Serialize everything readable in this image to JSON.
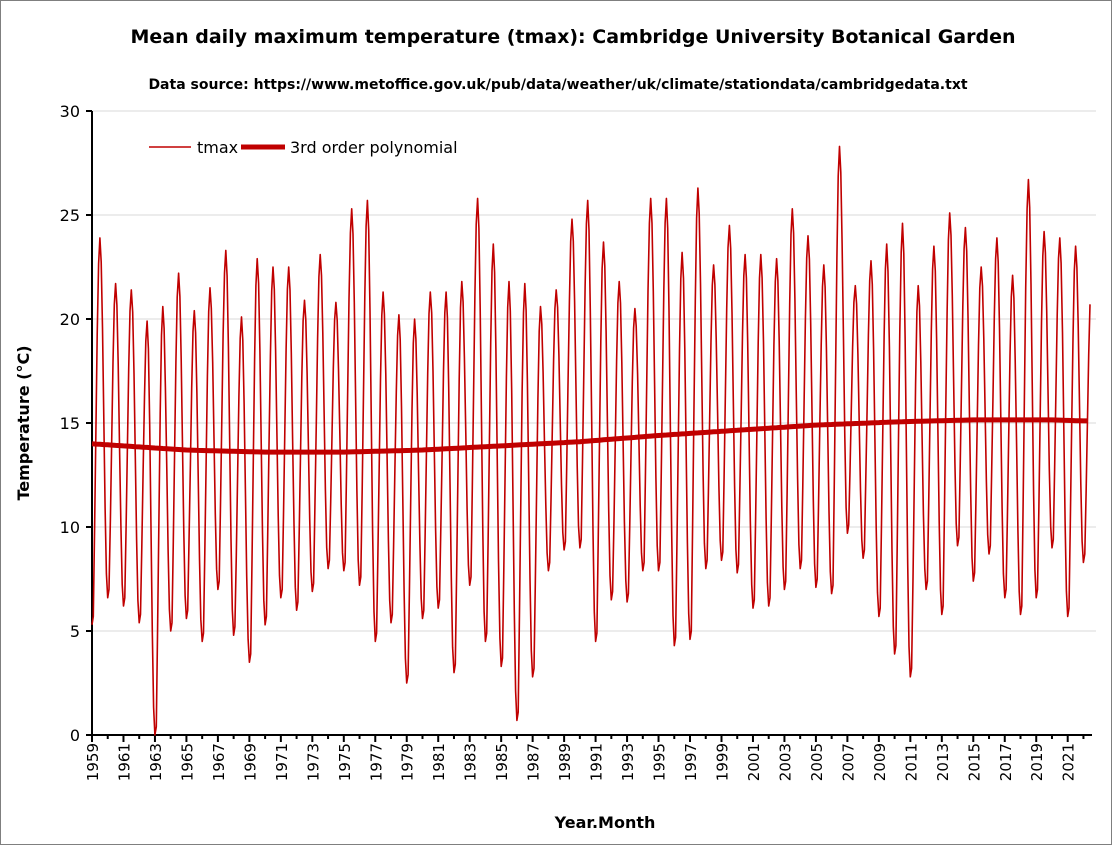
{
  "chart_data": {
    "type": "line",
    "title": "Mean daily maximum temperature (tmax): Cambridge University Botanical Garden",
    "subtitle": "Data source: https://www.metoffice.gov.uk/pub/data/weather/uk/climate/stationdata/cambridgedata.txt",
    "xlabel": "Year.Month",
    "ylabel": "Temperature (°C)",
    "ylim": [
      0,
      30
    ],
    "yticks": [
      "0",
      "5",
      "10",
      "15",
      "20",
      "25",
      "30"
    ],
    "xticks": [
      "1959",
      "1961",
      "1963",
      "1965",
      "1967",
      "1969",
      "1971",
      "1973",
      "1975",
      "1977",
      "1979",
      "1981",
      "1983",
      "1985",
      "1987",
      "1989",
      "1991",
      "1993",
      "1995",
      "1997",
      "1999",
      "2001",
      "2003",
      "2005",
      "2007",
      "2009",
      "2011",
      "2013",
      "2015",
      "2017",
      "2019",
      "2021"
    ],
    "start_year": 1959,
    "end": {
      "year": 2022,
      "month": 6
    },
    "grid": true,
    "legend": {
      "position": "top-left",
      "entries": [
        "tmax",
        "3rd order polynomial"
      ]
    },
    "series": [
      {
        "name": "tmax",
        "color": "#c00000",
        "note_values": "monthly values approximated from annual summer peak and winter trough read off the chart",
        "years": [
          1959,
          1960,
          1961,
          1962,
          1963,
          1964,
          1965,
          1966,
          1967,
          1968,
          1969,
          1970,
          1971,
          1972,
          1973,
          1974,
          1975,
          1976,
          1977,
          1978,
          1979,
          1980,
          1981,
          1982,
          1983,
          1984,
          1985,
          1986,
          1987,
          1988,
          1989,
          1990,
          1991,
          1992,
          1993,
          1994,
          1995,
          1996,
          1997,
          1998,
          1999,
          2000,
          2001,
          2002,
          2003,
          2004,
          2005,
          2006,
          2007,
          2008,
          2009,
          2010,
          2011,
          2012,
          2013,
          2014,
          2015,
          2016,
          2017,
          2018,
          2019,
          2020,
          2021,
          2022
        ],
        "winter_min": [
          5.3,
          6.6,
          6.2,
          5.4,
          0.0,
          5.0,
          5.6,
          4.5,
          7.0,
          4.8,
          3.5,
          5.3,
          6.6,
          6.0,
          6.9,
          8.0,
          7.9,
          7.2,
          4.5,
          5.4,
          2.5,
          5.6,
          6.1,
          3.0,
          7.2,
          4.5,
          3.3,
          0.7,
          2.8,
          7.9,
          8.9,
          9.0,
          4.5,
          6.5,
          6.4,
          7.9,
          7.9,
          4.3,
          4.6,
          8.0,
          8.4,
          7.8,
          6.1,
          6.2,
          7.0,
          8.0,
          7.1,
          6.8,
          9.7,
          8.5,
          5.7,
          3.9,
          2.8,
          7.0,
          5.8,
          9.1,
          7.4,
          8.7,
          6.6,
          5.8,
          6.6,
          9.0,
          5.7,
          8.3
        ],
        "summer_max": [
          23.9,
          21.7,
          21.4,
          19.9,
          20.6,
          22.2,
          20.4,
          21.5,
          23.3,
          20.1,
          22.9,
          22.5,
          22.5,
          20.9,
          23.1,
          20.8,
          25.3,
          25.7,
          21.3,
          20.2,
          20.0,
          21.3,
          21.3,
          21.8,
          25.8,
          23.6,
          21.8,
          21.7,
          20.6,
          21.4,
          24.8,
          25.7,
          23.7,
          21.8,
          20.5,
          25.8,
          25.8,
          23.2,
          26.3,
          22.6,
          24.5,
          23.1,
          23.1,
          22.9,
          25.3,
          24.0,
          22.6,
          28.3,
          21.6,
          22.8,
          23.6,
          24.6,
          21.6,
          23.5,
          25.1,
          24.4,
          22.5,
          23.9,
          22.1,
          26.7,
          24.2,
          23.9,
          23.5,
          21.6
        ]
      },
      {
        "name": "3rd order polynomial",
        "color": "#c00000",
        "trend_years": [
          1959,
          1965,
          1970,
          1975,
          1980,
          1985,
          1990,
          1995,
          2000,
          2005,
          2010,
          2015,
          2020,
          2022
        ],
        "trend_values": [
          14.0,
          13.7,
          13.6,
          13.6,
          13.7,
          13.9,
          14.1,
          14.4,
          14.65,
          14.9,
          15.05,
          15.15,
          15.15,
          15.1
        ]
      }
    ]
  }
}
